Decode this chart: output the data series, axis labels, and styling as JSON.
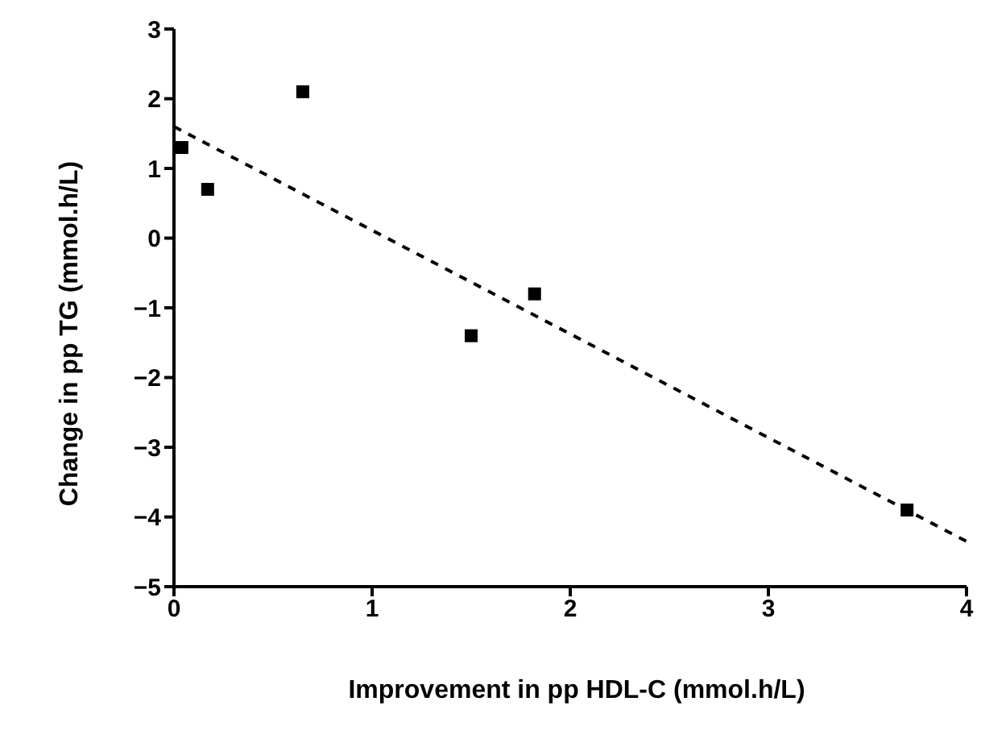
{
  "chart_data": {
    "type": "scatter",
    "xlabel": "Improvement in pp HDL-C (mmol.h/L)",
    "ylabel": "Change in pp TG (mmol.h/L)",
    "xlim": [
      0,
      4
    ],
    "xticks": [
      0,
      1,
      2,
      3,
      4
    ],
    "ylim": [
      -5,
      3
    ],
    "yticks": [
      -5,
      -4,
      -3,
      -2,
      -1,
      0,
      1,
      2,
      3
    ],
    "grid": false,
    "legend": false,
    "series": [
      {
        "type": "scatter",
        "color": "#000000",
        "marker": "square",
        "x": [
          0.04,
          0.17,
          0.65,
          1.5,
          1.82,
          3.7
        ],
        "values": [
          1.3,
          0.7,
          2.1,
          -1.4,
          -0.8,
          -3.9
        ]
      },
      {
        "type": "line",
        "color": "#000000",
        "marker": "none",
        "line_style": "dashed",
        "x": [
          0,
          4
        ],
        "values": [
          1.6,
          -4.35
        ]
      }
    ]
  }
}
